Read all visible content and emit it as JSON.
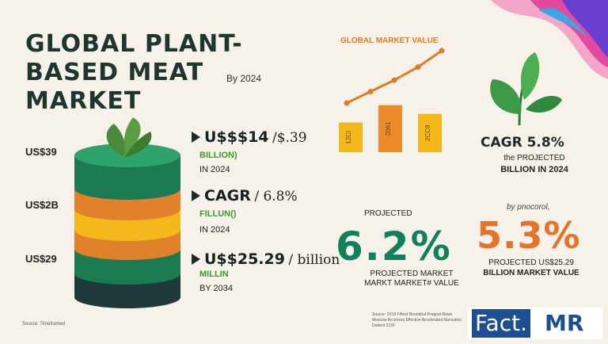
{
  "title": "GLOBAL PLANT-BASED MEAT MARKET",
  "subtitle": "By 2024",
  "left_labels": [
    "US$39",
    "US$2B",
    "US$29"
  ],
  "stats": [
    {
      "big": "U$$$14",
      "thin": "/$.39",
      "green": "BILLION)",
      "small": "IN 2024"
    },
    {
      "big": "CAGR",
      "thin": "/ 6.8%",
      "green": "FILLUN()",
      "small": "IN 2024"
    },
    {
      "big": "U$$25.29",
      "thin": "/ billion",
      "green": "MILLIN",
      "small": "BY 2034"
    }
  ],
  "chart_data": {
    "type": "bar",
    "title": "GLOBAL   MARKET VALUE",
    "categories": [
      "12CI",
      "2061",
      "2CC9"
    ],
    "values": [
      1.7,
      2.7,
      2.2
    ],
    "ylim": [
      0,
      3.2
    ],
    "trend": [
      3.2,
      3.9,
      4.6,
      5.4,
      6.4
    ],
    "colors": [
      "#f2b81c",
      "#ec8a2c",
      "#f2b81c"
    ],
    "line_color": "#e07b22"
  },
  "cagr_panel": {
    "main": "CAGR 5.8%",
    "sub1": "the PROJECTED",
    "sub2": "BILLION IN 2024"
  },
  "green_panel": {
    "label": "PROJECTED",
    "value": "6.2%",
    "sub1": "PROJECTED MARKET",
    "sub2": "MARKT MARKET# VALUE"
  },
  "orange_panel": {
    "label": "by pnocorol,",
    "value": "5.3%",
    "sub1": "PROJECTED US$25.29",
    "sub2": "BILLION MARKET VALUE"
  },
  "source_left": "Source: Timeframed",
  "source_right": "Source: 2X19 Fiftest Roundout Pregnet Rows Moscow Acceness Effective Accelerated Nanvation Dodent 2230",
  "brand": {
    "fact": "Fact.",
    "mr": "MR"
  },
  "colors": {
    "green": "#13805d",
    "orange": "#e4742a",
    "yellow": "#f2b81c",
    "brand_blue": "#1d4e8f"
  }
}
